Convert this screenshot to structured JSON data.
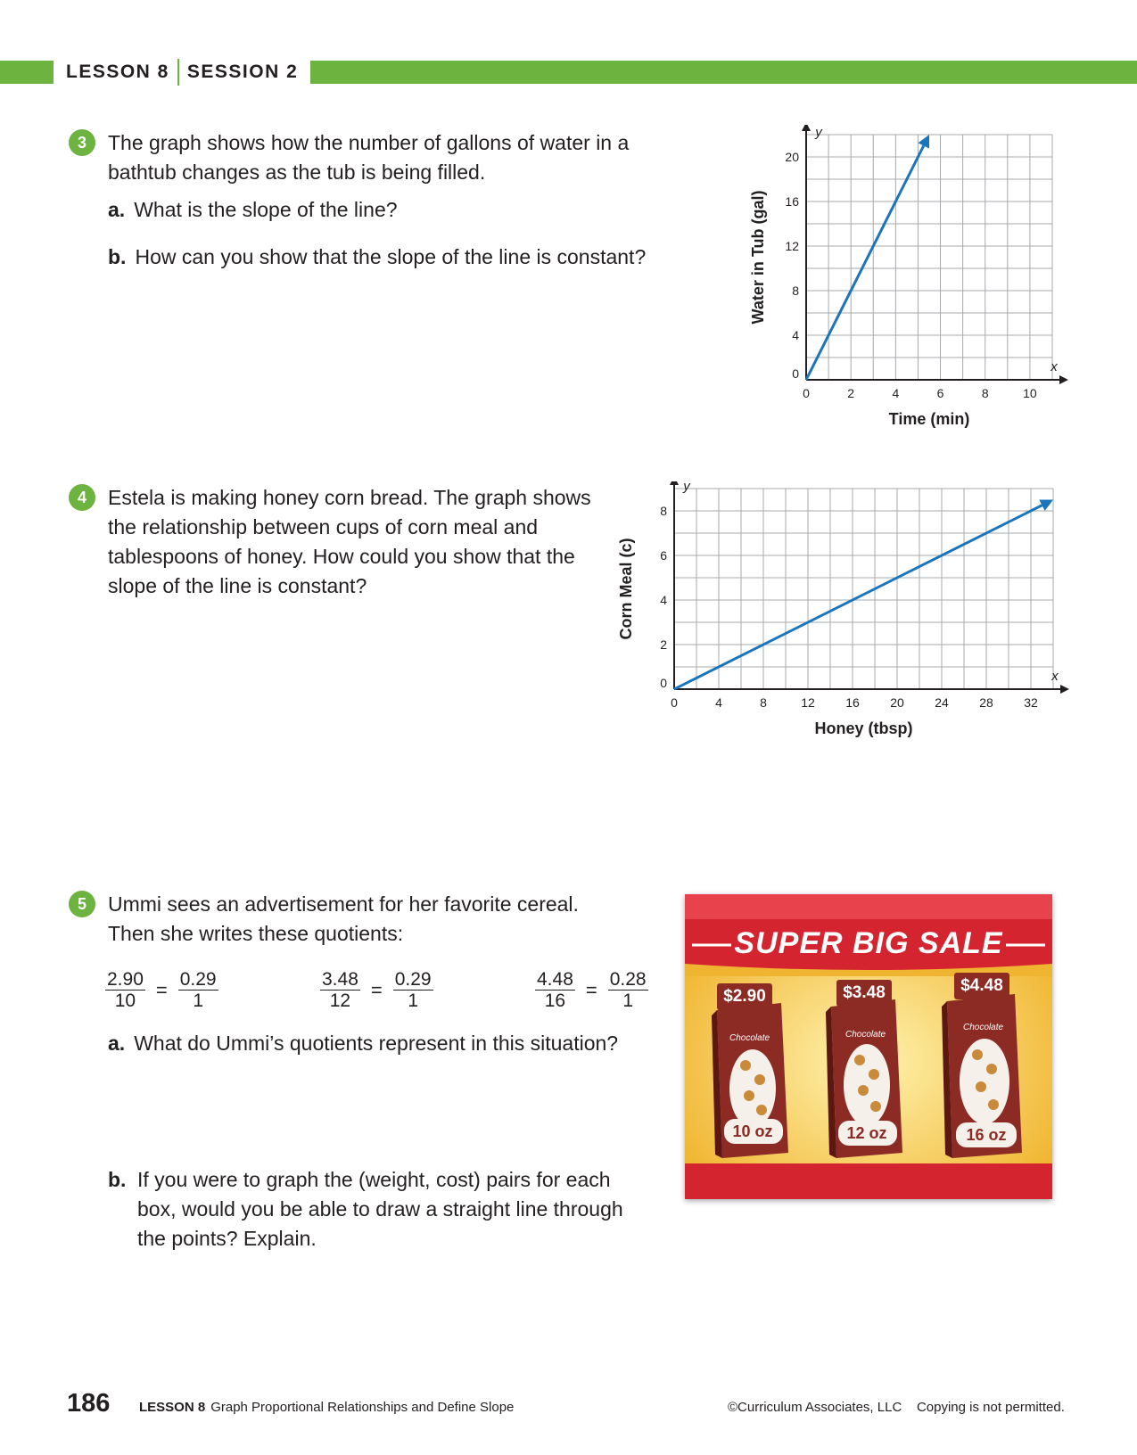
{
  "header": {
    "lesson": "LESSON 8",
    "session": "SESSION 2"
  },
  "q3": {
    "number": "3",
    "text": "The graph shows how the number of gallons of water in a bathtub changes as the tub is being filled.",
    "a_label": "a.",
    "a_text": "What is the slope of the line?",
    "b_label": "b.",
    "b_text": "How can you show that the slope of the line is constant?"
  },
  "q4": {
    "number": "4",
    "text": "Estela is making honey corn bread. The graph shows the relationship between cups of corn meal and tablespoons of honey. How could you show that the slope of the line is constant?"
  },
  "q5": {
    "number": "5",
    "text": "Ummi sees an advertisement for her favorite cereal. Then she writes these quotients:",
    "quotients": [
      {
        "n1": "2.90",
        "d1": "10",
        "eq": "=",
        "n2": "0.29",
        "d2": "1"
      },
      {
        "n1": "3.48",
        "d1": "12",
        "eq": "=",
        "n2": "0.29",
        "d2": "1"
      },
      {
        "n1": "4.48",
        "d1": "16",
        "eq": "=",
        "n2": "0.28",
        "d2": "1"
      }
    ],
    "a_label": "a.",
    "a_text": "What do Ummi’s quotients represent in this situation?",
    "b_label": "b.",
    "b_text": "If you were to graph the (weight, cost) pairs for each box, would you be able to draw a straight line through the points? Explain."
  },
  "ad": {
    "title": "SUPER BIG SALE",
    "boxes": [
      {
        "price": "$2.90",
        "weight": "10 oz",
        "flavor": "Chocolate"
      },
      {
        "price": "$3.48",
        "weight": "12 oz",
        "flavor": "Chocolate"
      },
      {
        "price": "$4.48",
        "weight": "16 oz",
        "flavor": "Chocolate"
      }
    ]
  },
  "chart_data": [
    {
      "type": "line",
      "xlabel": "Time (min)",
      "ylabel": "Water in Tub (gal)",
      "x_axis_letter": "x",
      "y_axis_letter": "y",
      "xlim": [
        0,
        11
      ],
      "ylim": [
        0,
        22
      ],
      "x_ticks": [
        "0",
        "2",
        "4",
        "6",
        "8",
        "10"
      ],
      "y_ticks": [
        "0",
        "4",
        "8",
        "12",
        "16",
        "20"
      ],
      "x_tick_values": [
        0,
        2,
        4,
        6,
        8,
        10
      ],
      "y_tick_values": [
        0,
        4,
        8,
        12,
        16,
        20
      ],
      "x_grid_step": 1,
      "y_grid_step": 2,
      "grid": true,
      "series": [
        {
          "x": [
            0,
            5.5
          ],
          "y": [
            0,
            22
          ],
          "color": "#1b75bb"
        }
      ]
    },
    {
      "type": "line",
      "xlabel": "Honey (tbsp)",
      "ylabel": "Corn Meal (c)",
      "x_axis_letter": "x",
      "y_axis_letter": "y",
      "xlim": [
        0,
        34
      ],
      "ylim": [
        0,
        9
      ],
      "x_ticks": [
        "0",
        "4",
        "8",
        "12",
        "16",
        "20",
        "24",
        "28",
        "32"
      ],
      "y_ticks": [
        "0",
        "2",
        "4",
        "6",
        "8"
      ],
      "x_tick_values": [
        0,
        4,
        8,
        12,
        16,
        20,
        24,
        28,
        32
      ],
      "y_tick_values": [
        0,
        2,
        4,
        6,
        8
      ],
      "x_grid_step": 2,
      "y_grid_step": 1,
      "grid": true,
      "series": [
        {
          "x": [
            0,
            34
          ],
          "y": [
            0,
            8.5
          ],
          "color": "#1b75bb"
        }
      ]
    }
  ],
  "footer": {
    "page_number": "186",
    "lesson_label": "LESSON 8",
    "lesson_title": "Graph Proportional Relationships and Define Slope",
    "copyright": "©Curriculum Associates, LLC    Copying is not permitted."
  }
}
